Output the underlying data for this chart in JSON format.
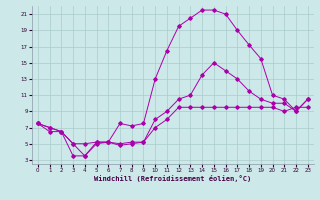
{
  "xlabel": "Windchill (Refroidissement éolien,°C)",
  "background_color": "#cce8e8",
  "grid_color": "#aacccc",
  "line_color": "#aa00aa",
  "xlim": [
    -0.5,
    23.5
  ],
  "ylim": [
    2.5,
    22
  ],
  "xticks": [
    0,
    1,
    2,
    3,
    4,
    5,
    6,
    7,
    8,
    9,
    10,
    11,
    12,
    13,
    14,
    15,
    16,
    17,
    18,
    19,
    20,
    21,
    22,
    23
  ],
  "yticks": [
    3,
    5,
    7,
    9,
    11,
    13,
    15,
    17,
    19,
    21
  ],
  "line1_x": [
    0,
    1,
    2,
    3,
    4,
    5,
    6,
    7,
    8,
    9,
    10,
    11,
    12,
    13,
    14,
    15,
    16,
    17,
    18,
    19,
    20,
    21,
    22,
    23
  ],
  "line1_y": [
    7.5,
    7.0,
    6.5,
    5.0,
    5.0,
    5.2,
    5.2,
    5.0,
    5.2,
    5.2,
    7.0,
    8.0,
    9.5,
    9.5,
    9.5,
    9.5,
    9.5,
    9.5,
    9.5,
    9.5,
    9.5,
    9.0,
    9.5,
    9.5
  ],
  "line2_x": [
    0,
    1,
    2,
    3,
    4,
    5,
    6,
    7,
    8,
    9,
    10,
    11,
    12,
    13,
    14,
    15,
    16,
    17,
    18,
    19,
    20,
    21,
    22,
    23
  ],
  "line2_y": [
    7.5,
    7.0,
    6.5,
    3.5,
    3.5,
    5.2,
    5.2,
    4.8,
    5.0,
    5.2,
    8.0,
    9.0,
    10.5,
    11.0,
    13.5,
    15.0,
    14.0,
    13.0,
    11.5,
    10.5,
    10.0,
    10.0,
    9.0,
    10.5
  ],
  "line3_x": [
    0,
    1,
    2,
    3,
    4,
    5,
    6,
    7,
    8,
    9,
    10,
    11,
    12,
    13,
    14,
    15,
    16,
    17,
    18,
    19,
    20,
    21,
    22,
    23
  ],
  "line3_y": [
    7.5,
    6.5,
    6.5,
    5.0,
    3.5,
    5.0,
    5.2,
    7.5,
    7.2,
    7.5,
    13.0,
    16.5,
    19.5,
    20.5,
    21.5,
    21.5,
    21.0,
    19.0,
    17.2,
    15.5,
    11.0,
    10.5,
    9.0,
    10.5
  ]
}
